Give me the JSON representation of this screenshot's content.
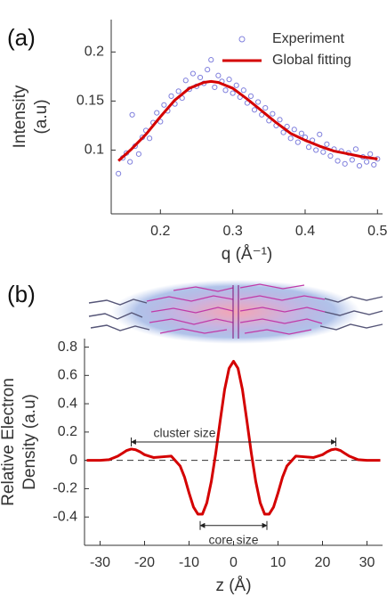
{
  "chart_data": [
    {
      "type": "scatter",
      "panel_label": "(a)",
      "ylabel": [
        "Intensity",
        "(a.u)"
      ],
      "xlabel": "q (Å⁻¹)",
      "xlim": [
        0.132,
        0.507
      ],
      "xticks": [
        0.2,
        0.3,
        0.4,
        0.5
      ],
      "ylim": [
        0.035,
        0.233
      ],
      "yticks": [
        0.1,
        0.15,
        0.2
      ],
      "legend": "northeast",
      "series": [
        {
          "name": "Experiment",
          "type": "scatter",
          "color": "#8080dd",
          "x": [
            0.142,
            0.148,
            0.153,
            0.158,
            0.161,
            0.165,
            0.17,
            0.175,
            0.18,
            0.185,
            0.19,
            0.195,
            0.2,
            0.205,
            0.21,
            0.215,
            0.22,
            0.225,
            0.23,
            0.235,
            0.24,
            0.245,
            0.25,
            0.255,
            0.26,
            0.265,
            0.27,
            0.275,
            0.28,
            0.285,
            0.29,
            0.295,
            0.3,
            0.305,
            0.31,
            0.315,
            0.32,
            0.325,
            0.33,
            0.335,
            0.34,
            0.345,
            0.35,
            0.355,
            0.36,
            0.365,
            0.37,
            0.375,
            0.38,
            0.385,
            0.39,
            0.395,
            0.4,
            0.405,
            0.41,
            0.415,
            0.42,
            0.425,
            0.43,
            0.435,
            0.44,
            0.445,
            0.45,
            0.455,
            0.46,
            0.465,
            0.47,
            0.475,
            0.48,
            0.485,
            0.49,
            0.495,
            0.5
          ],
          "values": [
            0.076,
            0.092,
            0.097,
            0.088,
            0.136,
            0.104,
            0.096,
            0.113,
            0.12,
            0.112,
            0.128,
            0.138,
            0.129,
            0.146,
            0.14,
            0.155,
            0.147,
            0.16,
            0.153,
            0.171,
            0.162,
            0.178,
            0.165,
            0.174,
            0.168,
            0.182,
            0.192,
            0.164,
            0.176,
            0.17,
            0.161,
            0.172,
            0.158,
            0.166,
            0.154,
            0.161,
            0.148,
            0.155,
            0.141,
            0.149,
            0.136,
            0.143,
            0.13,
            0.137,
            0.125,
            0.131,
            0.118,
            0.124,
            0.112,
            0.121,
            0.108,
            0.117,
            0.113,
            0.103,
            0.11,
            0.1,
            0.116,
            0.098,
            0.106,
            0.094,
            0.101,
            0.089,
            0.099,
            0.086,
            0.097,
            0.09,
            0.101,
            0.084,
            0.093,
            0.088,
            0.096,
            0.085,
            0.091
          ]
        },
        {
          "name": "Global fitting",
          "type": "line",
          "color": "#d40000",
          "x": [
            0.142,
            0.16,
            0.18,
            0.2,
            0.22,
            0.24,
            0.26,
            0.27,
            0.28,
            0.3,
            0.32,
            0.34,
            0.36,
            0.38,
            0.4,
            0.42,
            0.44,
            0.46,
            0.48,
            0.5
          ],
          "values": [
            0.089,
            0.101,
            0.116,
            0.134,
            0.151,
            0.163,
            0.169,
            0.17,
            0.169,
            0.163,
            0.152,
            0.14,
            0.128,
            0.117,
            0.11,
            0.104,
            0.099,
            0.096,
            0.093,
            0.091
          ]
        }
      ]
    },
    {
      "type": "line",
      "panel_label": "(b)",
      "ylabel": [
        "Relative Electron",
        "Density (a.u)"
      ],
      "xlabel": "z (Å)",
      "xlim": [
        -33.5,
        33.5
      ],
      "xticks": [
        -30,
        -20,
        -10,
        0,
        10,
        20,
        30
      ],
      "ylim": [
        -0.6,
        0.86
      ],
      "yticks": [
        -0.4,
        -0.2,
        0,
        0.2,
        0.4,
        0.6,
        0.8
      ],
      "annotations": [
        "cluster size",
        "core size"
      ],
      "series": [
        {
          "color": "#d40000",
          "x": [
            -33,
            -30,
            -28,
            -26,
            -25,
            -24,
            -23,
            -22,
            -21,
            -20,
            -18,
            -16,
            -14,
            -12,
            -11,
            -10,
            -9,
            -8,
            -7,
            -6,
            -5,
            -4,
            -3,
            -2,
            -1,
            0,
            1,
            2,
            3,
            4,
            5,
            6,
            7,
            8,
            9,
            10,
            11,
            12,
            14,
            16,
            18,
            20,
            21,
            22,
            23,
            24,
            25,
            26,
            28,
            30,
            33
          ],
          "values": [
            0,
            0,
            0.005,
            0.03,
            0.05,
            0.07,
            0.08,
            0.075,
            0.06,
            0.04,
            0.02,
            0.025,
            0.03,
            -0.04,
            -0.12,
            -0.23,
            -0.33,
            -0.38,
            -0.38,
            -0.3,
            -0.15,
            0.05,
            0.28,
            0.5,
            0.65,
            0.7,
            0.65,
            0.5,
            0.28,
            0.05,
            -0.15,
            -0.3,
            -0.38,
            -0.38,
            -0.33,
            -0.23,
            -0.12,
            -0.04,
            0.03,
            0.025,
            0.02,
            0.04,
            0.06,
            0.075,
            0.08,
            0.07,
            0.05,
            0.03,
            0.005,
            0,
            0
          ]
        }
      ]
    }
  ]
}
